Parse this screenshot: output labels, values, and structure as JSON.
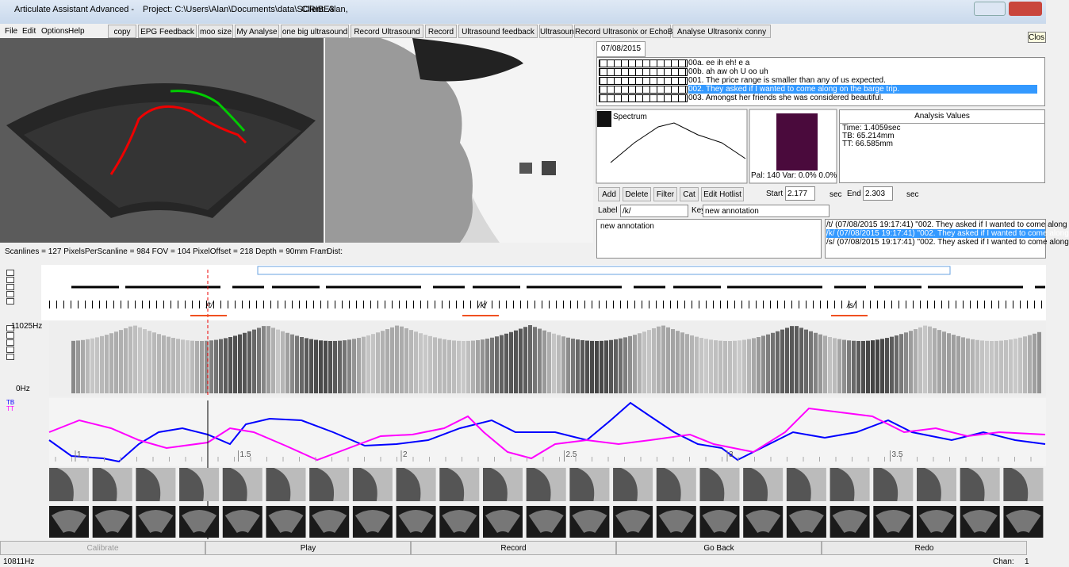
{
  "title_bar": {
    "app": "Articulate Assistant Advanced -",
    "project": "Project: C:\\Users\\Alan\\Documents\\data\\SCRIBE3",
    "client": "Client: Alan,"
  },
  "tooltip": "Clos",
  "menu": [
    "File",
    "Edit",
    "Options",
    "Help"
  ],
  "toolbar": [
    "copy",
    "EPG Feedback",
    "moo size",
    "My Analyse",
    "one big ultrasound",
    "Record Ultrasound",
    "Record",
    "Ultrasound feedback",
    "Ultrasound",
    "Record Ultrasonix or EchoB",
    "Analyse Ultrasonix conny"
  ],
  "ultrasound_status": "Scanlines = 127    PixelsPerScanline = 984    FOV = 104    PixelOffset = 218    Depth = 90mm    Fram",
  "dist": "Dist:",
  "date_tab": "07/08/2015",
  "prompts": [
    "00a.  ee ih eh! e a",
    "00b.  ah aw oh U oo uh",
    "001.  The price range is smaller than any of us expected.",
    "002.  They asked if I wanted to come along on the barge trip.",
    "003.  Amongst her friends she was considered beautiful."
  ],
  "selected_prompt": 3,
  "spectrum": "Spectrum",
  "epg_status": "Pal: 140 Var: 0.0%  0.0%",
  "analysis": {
    "title": "Analysis Values",
    "lines": [
      "Time: 1.4059sec",
      "TB: 65.214mm",
      "TT: 66.585mm"
    ]
  },
  "buttons": [
    "Add",
    "Delete",
    "Filter",
    "Cat",
    "Edit Hotlist"
  ],
  "start": {
    "label": "Start",
    "value": "2.177",
    "unit": "sec"
  },
  "end": {
    "label": "End",
    "value": "2.303",
    "unit": "sec"
  },
  "label_field": {
    "label": "Label",
    "value": "/k/"
  },
  "key_field": {
    "label": "Key",
    "value": "new annotation"
  },
  "note": "new annotation",
  "annotations": [
    "/t/ (07/08/2015 19:17:41) \"002.  They asked if I wanted to come along",
    "/k/ (07/08/2015 19:17:41) \"002.  They asked if I wanted to come along",
    "/s/ (07/08/2015 19:17:41) \"002.  They asked if I wanted to come along"
  ],
  "selected_annotation": 1,
  "segment_labels": [
    "/t/",
    "/k/",
    "/s/"
  ],
  "spectrogram": {
    "max": "11025Hz",
    "min": "0Hz"
  },
  "splines": {
    "names": [
      "TB",
      "TT"
    ],
    "colors": [
      "#0000ff",
      "#ff00ff"
    ]
  },
  "time_ticks": [
    1,
    1.5,
    2,
    2.5,
    3,
    3.5
  ],
  "bottom_buttons": [
    "Calibrate",
    "Play",
    "Record",
    "Go Back",
    "Redo"
  ],
  "status": {
    "left": "10811Hz",
    "right": "Chan:",
    "channel": "1"
  }
}
